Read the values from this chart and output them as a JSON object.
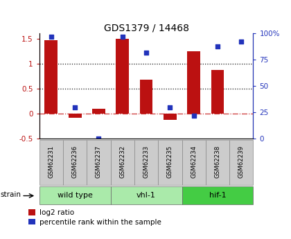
{
  "title": "GDS1379 / 14468",
  "samples": [
    "GSM62231",
    "GSM62236",
    "GSM62237",
    "GSM62232",
    "GSM62233",
    "GSM62235",
    "GSM62234",
    "GSM62238",
    "GSM62239"
  ],
  "log2_ratio": [
    1.47,
    -0.08,
    0.1,
    1.5,
    0.68,
    -0.12,
    1.25,
    0.87,
    0.0
  ],
  "percentile_rank": [
    97,
    30,
    0,
    97,
    82,
    30,
    22,
    88,
    92
  ],
  "groups": [
    {
      "label": "wild type",
      "start": 0,
      "end": 3,
      "color": "#aaeaaa"
    },
    {
      "label": "vhl-1",
      "start": 3,
      "end": 6,
      "color": "#aaeaaa"
    },
    {
      "label": "hif-1",
      "start": 6,
      "end": 9,
      "color": "#44cc44"
    }
  ],
  "ylim_left": [
    -0.5,
    1.6
  ],
  "ylim_right": [
    0,
    100
  ],
  "bar_color": "#bb1111",
  "dot_color": "#2233bb",
  "hline0_color": "#cc3333",
  "dotline_color": "#111111",
  "bg_color": "#ffffff",
  "legend_items": [
    "log2 ratio",
    "percentile rank within the sample"
  ],
  "strain_label": "strain",
  "right_yticks": [
    0,
    25,
    50,
    75,
    100
  ],
  "right_yticklabels": [
    "0",
    "25",
    "50",
    "75",
    "100%"
  ],
  "left_yticks": [
    -0.5,
    0,
    0.5,
    1.0,
    1.5
  ],
  "left_yticklabels": [
    "-0.5",
    "0",
    "0.5",
    "1",
    "1.5"
  ],
  "dotted_hlines": [
    0.5,
    1.0
  ],
  "bar_width": 0.55
}
